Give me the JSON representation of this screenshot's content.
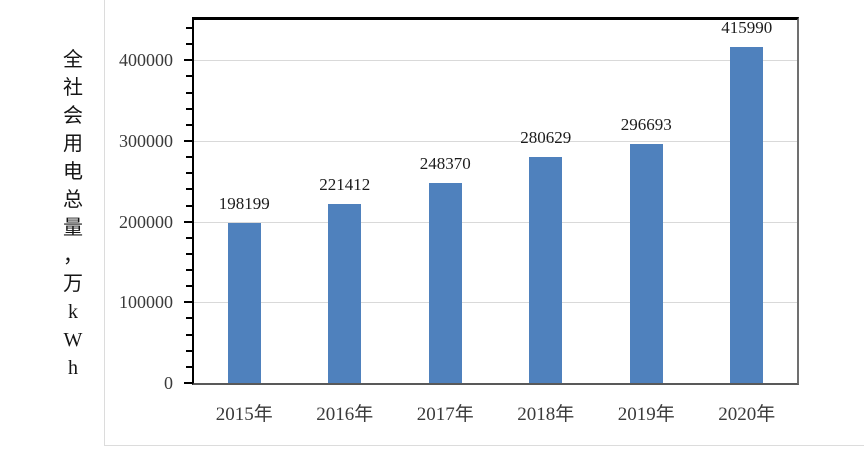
{
  "chart_data": {
    "type": "bar",
    "title": "",
    "categories": [
      "2015年",
      "2016年",
      "2017年",
      "2018年",
      "2019年",
      "2020年"
    ],
    "values": [
      198199,
      221412,
      248370,
      280629,
      296693,
      415990
    ],
    "data_labels": [
      "198199",
      "221412",
      "248370",
      "280629",
      "296693",
      "415990"
    ],
    "xlabel": "",
    "ylabel": "全社会用电总量，万kWh",
    "ylim": [
      0,
      450000
    ],
    "y_major_unit": 100000,
    "y_minor_unit": 20000,
    "y_tick_values": [
      0,
      100000,
      200000,
      300000,
      400000
    ],
    "y_tick_labels": [
      "0",
      "100000",
      "200000",
      "300000",
      "400000"
    ],
    "grid": true,
    "legend": "none",
    "colors": {
      "bar": "#4f81bd",
      "gridline": "#d9d9d9",
      "axis_left": "#000000",
      "axis_bottom": "#595959",
      "plot_border_top": "#000000",
      "plot_border_right": "#707070",
      "tick_label": "#3a3a3a",
      "x_label": "#3a3a3a",
      "data_label": "#1c1c1c",
      "axis_title": "#151515",
      "cell_border": "#dcdcdc",
      "background": "#ffffff"
    }
  }
}
